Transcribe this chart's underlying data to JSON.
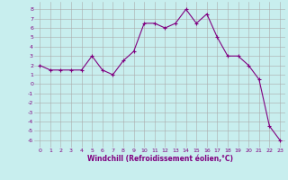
{
  "x": [
    0,
    1,
    2,
    3,
    4,
    5,
    6,
    7,
    8,
    9,
    10,
    11,
    12,
    13,
    14,
    15,
    16,
    17,
    18,
    19,
    20,
    21,
    22,
    23
  ],
  "y": [
    2.0,
    1.5,
    1.5,
    1.5,
    1.5,
    3.0,
    1.5,
    1.0,
    2.5,
    3.5,
    6.5,
    6.5,
    6.0,
    6.5,
    8.0,
    6.5,
    7.5,
    5.0,
    3.0,
    3.0,
    2.0,
    0.5,
    -4.5,
    -6.0
  ],
  "line_color": "#800080",
  "marker": "+",
  "marker_size": 3,
  "marker_lw": 0.8,
  "line_width": 0.8,
  "bg_color": "#c8eeee",
  "grid_color": "#aaaaaa",
  "xlabel": "Windchill (Refroidissement éolien,°C)",
  "yticks": [
    8,
    7,
    6,
    5,
    4,
    3,
    2,
    1,
    0,
    -1,
    -2,
    -3,
    -4,
    -5,
    -6
  ],
  "ylim": [
    -6.8,
    8.8
  ],
  "xlim": [
    -0.5,
    23.5
  ],
  "xtick_fontsize": 4.5,
  "ytick_fontsize": 4.5,
  "xlabel_fontsize": 5.5
}
